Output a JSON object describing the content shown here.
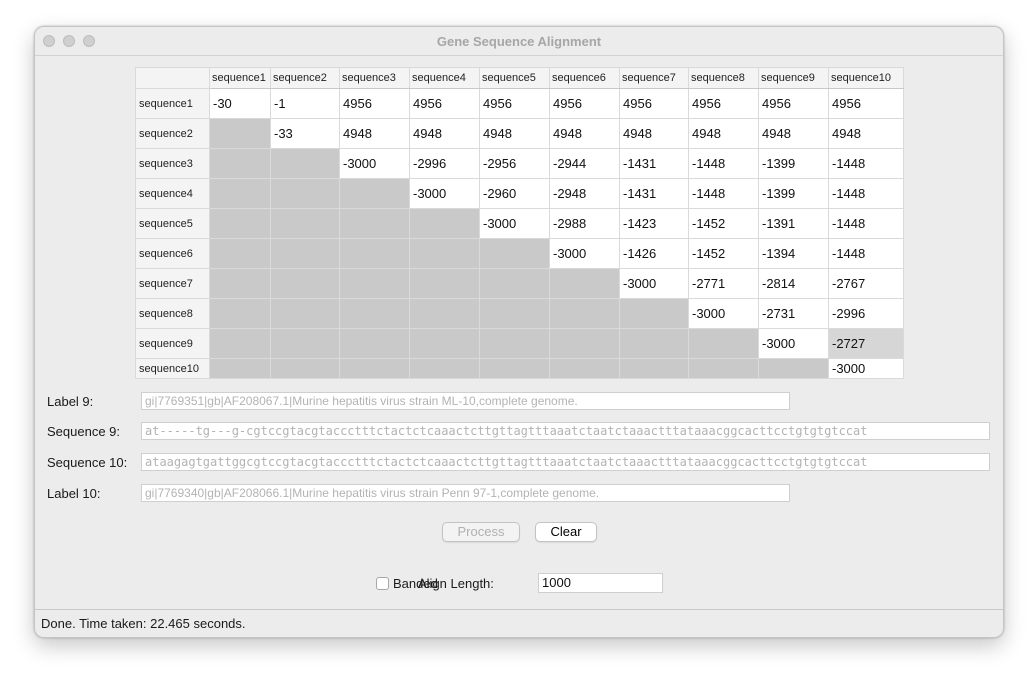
{
  "window": {
    "title": "Gene Sequence Alignment"
  },
  "matrix": {
    "columns": [
      "sequence1",
      "sequence2",
      "sequence3",
      "sequence4",
      "sequence5",
      "sequence6",
      "sequence7",
      "sequence8",
      "sequence9",
      "sequence10"
    ],
    "rows": [
      {
        "label": "sequence1",
        "cells": [
          "-30",
          "-1",
          "4956",
          "4956",
          "4956",
          "4956",
          "4956",
          "4956",
          "4956",
          "4956"
        ]
      },
      {
        "label": "sequence2",
        "cells": [
          "",
          "-33",
          "4948",
          "4948",
          "4948",
          "4948",
          "4948",
          "4948",
          "4948",
          "4948"
        ]
      },
      {
        "label": "sequence3",
        "cells": [
          "",
          "",
          "-3000",
          "-2996",
          "-2956",
          "-2944",
          "-1431",
          "-1448",
          "-1399",
          "-1448"
        ]
      },
      {
        "label": "sequence4",
        "cells": [
          "",
          "",
          "",
          "-3000",
          "-2960",
          "-2948",
          "-1431",
          "-1448",
          "-1399",
          "-1448"
        ]
      },
      {
        "label": "sequence5",
        "cells": [
          "",
          "",
          "",
          "",
          "-3000",
          "-2988",
          "-1423",
          "-1452",
          "-1391",
          "-1448"
        ]
      },
      {
        "label": "sequence6",
        "cells": [
          "",
          "",
          "",
          "",
          "",
          "-3000",
          "-1426",
          "-1452",
          "-1394",
          "-1448"
        ]
      },
      {
        "label": "sequence7",
        "cells": [
          "",
          "",
          "",
          "",
          "",
          "",
          "-3000",
          "-2771",
          "-2814",
          "-2767"
        ]
      },
      {
        "label": "sequence8",
        "cells": [
          "",
          "",
          "",
          "",
          "",
          "",
          "",
          "-3000",
          "-2731",
          "-2996"
        ]
      },
      {
        "label": "sequence9",
        "cells": [
          "",
          "",
          "",
          "",
          "",
          "",
          "",
          "",
          "-3000",
          "-2727"
        ]
      },
      {
        "label": "sequence10",
        "cells": [
          "",
          "",
          "",
          "",
          "",
          "",
          "",
          "",
          "",
          "-3000"
        ]
      }
    ]
  },
  "form": {
    "label9_caption": "Label 9:",
    "label9_value": "gi|7769351|gb|AF208067.1|Murine hepatitis virus strain ML-10,complete genome.",
    "seq9_caption": "Sequence 9:",
    "seq9_value": "at-----tg---g-cgtccgtacgtaccctttctactctcaaactcttgttagtttaaatctaatctaaactttataaacggcacttcctgtgtgtccat",
    "seq10_caption": "Sequence 10:",
    "seq10_value": "ataagagtgattggcgtccgtacgtaccctttctactctcaaactcttgttagtttaaatctaatctaaactttataaacggcacttcctgtgtgtccat",
    "label10_caption": "Label 10:",
    "label10_value": "gi|7769340|gb|AF208066.1|Murine hepatitis virus strain Penn 97-1,complete genome."
  },
  "buttons": {
    "process": "Process",
    "clear": "Clear"
  },
  "options": {
    "banded_label": "Banded",
    "banded_checked": false,
    "align_length_label": "Align Length:",
    "align_length_value": "1000"
  },
  "status": {
    "text": "Done. Time taken: 22.465 seconds."
  }
}
